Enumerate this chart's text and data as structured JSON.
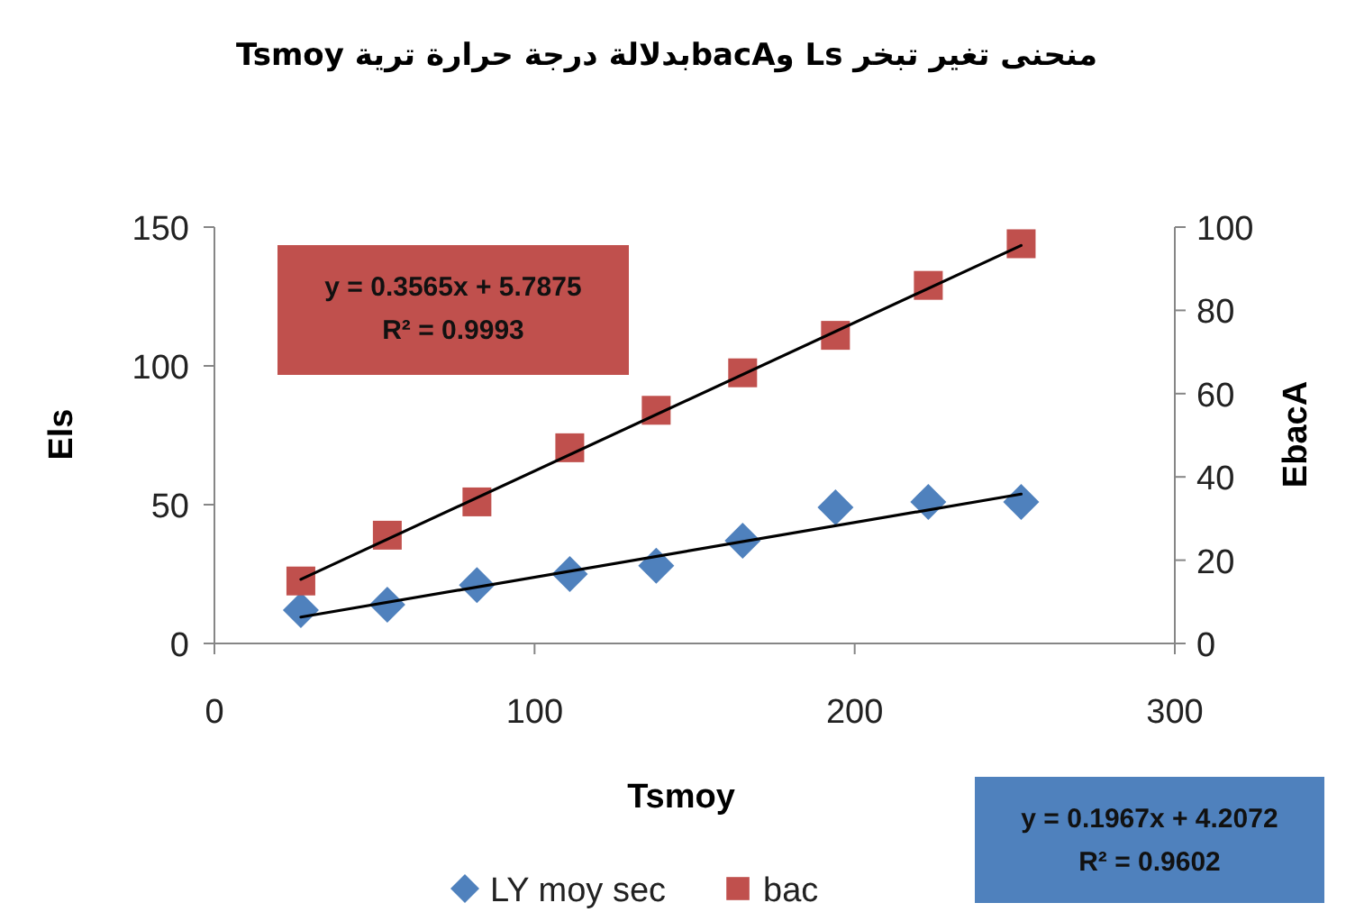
{
  "chart_data": {
    "type": "scatter",
    "title": "منحنى تغير تبخر Ls وbacAبدلالة درجة حرارة ترية Tsmoy",
    "xlabel": "Tsmoy",
    "ylabel": "Els",
    "y2label": "EbacA",
    "xlim": [
      0,
      300
    ],
    "xticks": [
      0,
      100,
      200,
      300
    ],
    "ylim": [
      0,
      150
    ],
    "yticks": [
      0,
      50,
      100,
      150
    ],
    "y2lim": [
      0,
      100
    ],
    "y2ticks": [
      0,
      20,
      40,
      60,
      80,
      100
    ],
    "grid": false,
    "legend": "bottom",
    "series": [
      {
        "name": "LY moy sec",
        "color": "#4f81bd",
        "marker": "diamond",
        "x": [
          27,
          54,
          82,
          111,
          138,
          165,
          194,
          223,
          252
        ],
        "values": [
          12,
          14,
          21,
          25,
          28,
          37,
          49,
          51,
          51
        ]
      },
      {
        "name": "bac",
        "color": "#c0504d",
        "marker": "square",
        "axis": "y2",
        "x": [
          27,
          54,
          82,
          111,
          138,
          165,
          194,
          223,
          252
        ],
        "values": [
          15,
          26,
          34,
          47,
          56,
          65,
          74,
          86,
          96
        ]
      },
      {
        "type": "line",
        "color": "#000000",
        "x": [
          27,
          252
        ],
        "values": [
          9.5,
          53.8
        ]
      },
      {
        "type": "line",
        "color": "#000000",
        "axis": "y2",
        "x": [
          27,
          252
        ],
        "values": [
          15.4,
          95.6
        ]
      }
    ],
    "annotations": [
      "y = 0.3565x + 5.7875\nR² = 0.9993",
      "y = 0.1967x + 4.2072\nR² = 0.9602"
    ]
  }
}
